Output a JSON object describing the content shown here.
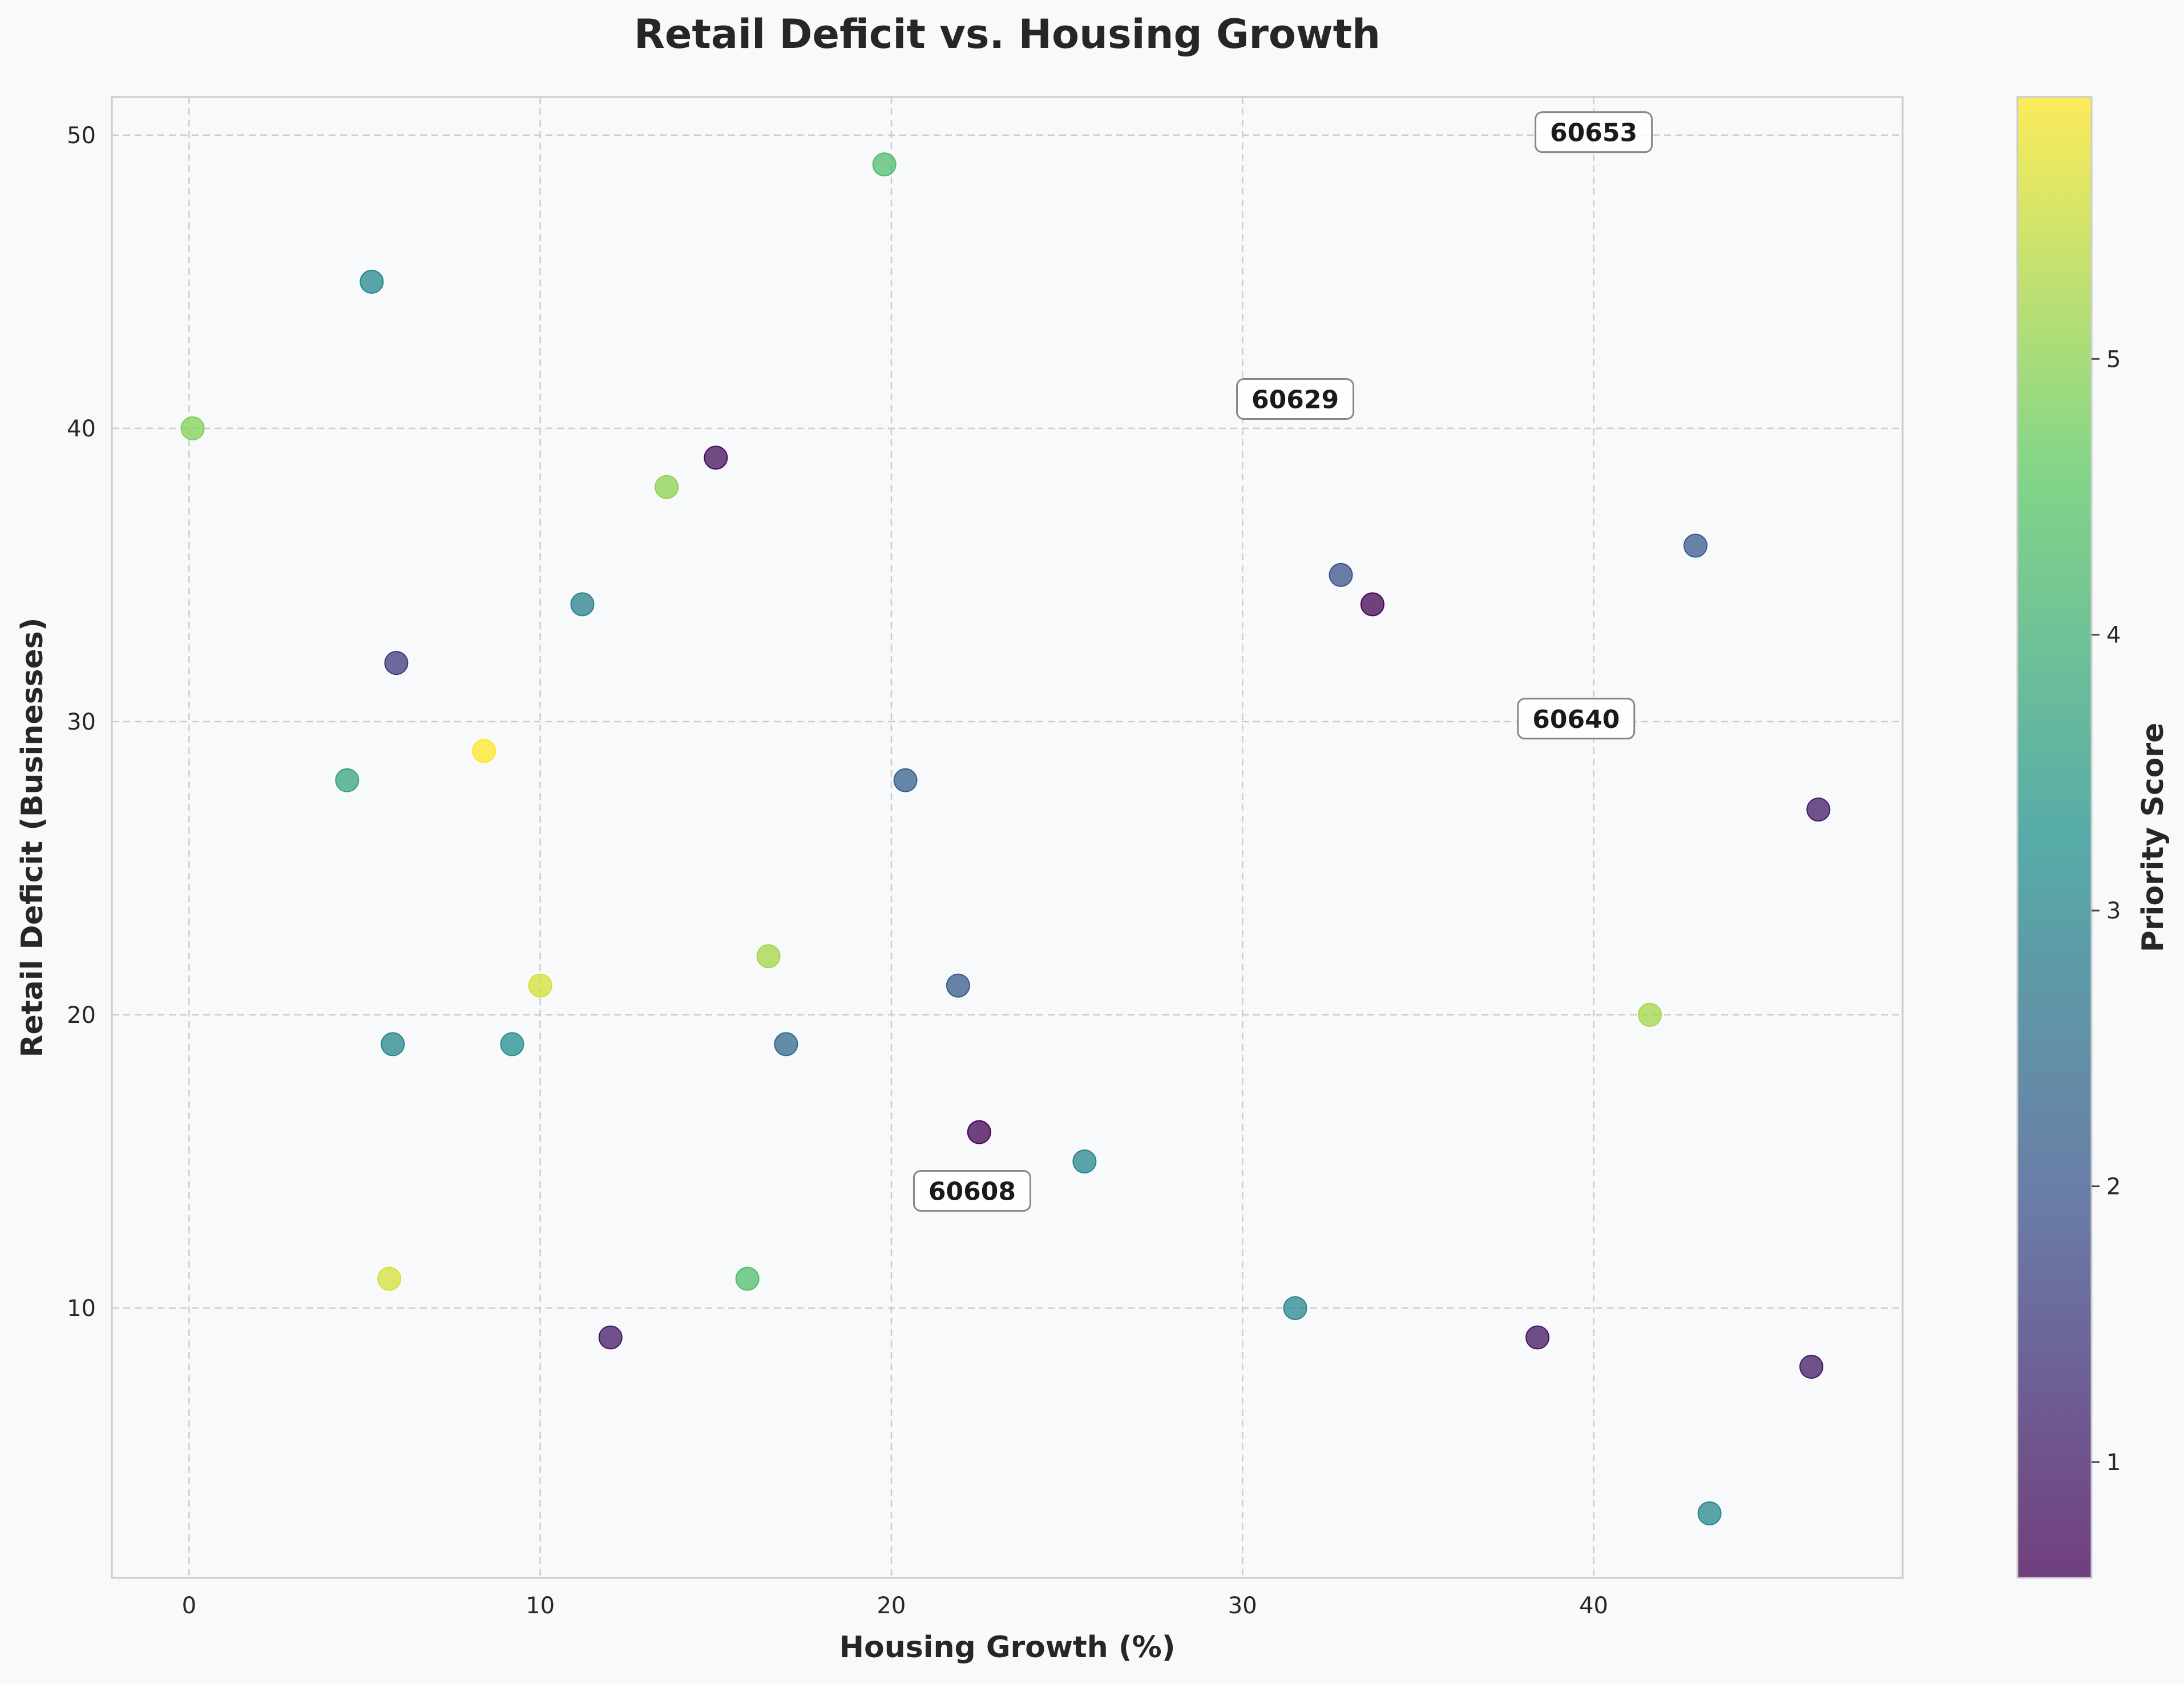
{
  "chart_data": {
    "type": "scatter",
    "title": "Retail Deficit vs. Housing Growth",
    "xlabel": "Housing Growth (%)",
    "ylabel": "Retail Deficit (Businesses)",
    "colorbar_label": "Priority Score",
    "xlim": [
      -2.2,
      48.8
    ],
    "ylim": [
      0.8,
      51.3
    ],
    "xticks": [
      0,
      10,
      20,
      30,
      40
    ],
    "yticks": [
      10,
      20,
      30,
      40,
      50
    ],
    "colorbar_ticks": [
      1,
      2,
      3,
      4,
      5
    ],
    "color_range": [
      0.58,
      5.95
    ],
    "colormap": [
      "#440154",
      "#3b528b",
      "#21918c",
      "#5ec962",
      "#fde725"
    ],
    "grid": true,
    "points": [
      {
        "x": 0.1,
        "y": 40,
        "c": 4.9
      },
      {
        "x": 5.2,
        "y": 45,
        "c": 3.0
      },
      {
        "x": 5.9,
        "y": 32,
        "c": 1.5
      },
      {
        "x": 4.5,
        "y": 28,
        "c": 3.7
      },
      {
        "x": 5.8,
        "y": 19,
        "c": 3.0
      },
      {
        "x": 5.7,
        "y": 11,
        "c": 5.6
      },
      {
        "x": 8.4,
        "y": 29,
        "c": 5.95
      },
      {
        "x": 9.2,
        "y": 19,
        "c": 3.2
      },
      {
        "x": 10.0,
        "y": 21,
        "c": 5.6
      },
      {
        "x": 11.2,
        "y": 34,
        "c": 2.9
      },
      {
        "x": 12.0,
        "y": 9,
        "c": 1.0
      },
      {
        "x": 13.6,
        "y": 38,
        "c": 5.0
      },
      {
        "x": 15.0,
        "y": 39,
        "c": 0.8
      },
      {
        "x": 15.9,
        "y": 11,
        "c": 4.3
      },
      {
        "x": 16.5,
        "y": 22,
        "c": 5.2
      },
      {
        "x": 17.0,
        "y": 19,
        "c": 2.4
      },
      {
        "x": 19.8,
        "y": 49,
        "c": 4.3
      },
      {
        "x": 20.4,
        "y": 28,
        "c": 2.2
      },
      {
        "x": 21.9,
        "y": 21,
        "c": 2.1
      },
      {
        "x": 22.5,
        "y": 16,
        "c": 0.6
      },
      {
        "x": 25.5,
        "y": 15,
        "c": 3.0
      },
      {
        "x": 31.5,
        "y": 10,
        "c": 3.0
      },
      {
        "x": 32.8,
        "y": 35,
        "c": 1.9
      },
      {
        "x": 33.7,
        "y": 34,
        "c": 0.6
      },
      {
        "x": 38.4,
        "y": 9,
        "c": 0.9
      },
      {
        "x": 41.6,
        "y": 20,
        "c": 5.2
      },
      {
        "x": 42.9,
        "y": 36,
        "c": 2.1
      },
      {
        "x": 43.3,
        "y": 3,
        "c": 3.0
      },
      {
        "x": 46.2,
        "y": 8,
        "c": 1.0
      },
      {
        "x": 46.4,
        "y": 27,
        "c": 1.0
      }
    ],
    "annotations": [
      {
        "text": "60653",
        "x": 40.0,
        "y": 50.1
      },
      {
        "text": "60629",
        "x": 31.5,
        "y": 41.0
      },
      {
        "text": "60640",
        "x": 39.5,
        "y": 30.1
      },
      {
        "text": "60608",
        "x": 22.3,
        "y": 14.0
      }
    ]
  }
}
